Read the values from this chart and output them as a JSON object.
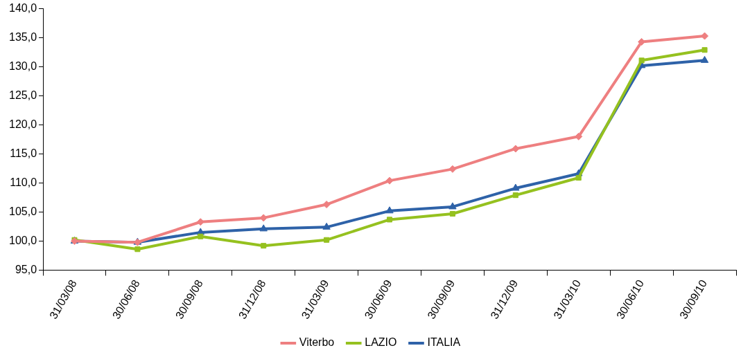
{
  "chart_data": {
    "type": "line",
    "categories": [
      "31/03/08",
      "30/06/08",
      "30/09/08",
      "31/12/08",
      "31/03/09",
      "30/06/09",
      "30/09/09",
      "31/12/09",
      "31/03/10",
      "30/06/10",
      "30/09/10"
    ],
    "series": [
      {
        "name": "Viterbo",
        "color": "#ee7f80",
        "marker": "diamond",
        "values": [
          100.0,
          99.8,
          103.3,
          104.0,
          106.3,
          110.4,
          112.4,
          115.9,
          118.0,
          134.3,
          135.3
        ]
      },
      {
        "name": "LAZIO",
        "color": "#95c11f",
        "marker": "square",
        "values": [
          100.2,
          98.6,
          100.8,
          99.2,
          100.2,
          103.7,
          104.7,
          107.9,
          110.9,
          131.1,
          132.9
        ]
      },
      {
        "name": "ITALIA",
        "color": "#2e62a8",
        "marker": "triangle",
        "values": [
          100.0,
          99.8,
          101.5,
          102.1,
          102.4,
          105.2,
          105.9,
          109.1,
          111.6,
          130.2,
          131.1
        ]
      }
    ],
    "ylim": [
      95,
      140
    ],
    "yticks": [
      {
        "value": 95,
        "label": "95,0"
      },
      {
        "value": 100,
        "label": "100,0"
      },
      {
        "value": 105,
        "label": "105,0"
      },
      {
        "value": 110,
        "label": "110,0"
      },
      {
        "value": 115,
        "label": "115,0"
      },
      {
        "value": 120,
        "label": "120,0"
      },
      {
        "value": 125,
        "label": "125,0"
      },
      {
        "value": 130,
        "label": "130,0"
      },
      {
        "value": 135,
        "label": "135,0"
      },
      {
        "value": 140,
        "label": "140,0"
      }
    ],
    "grid": false,
    "legend": "bottom",
    "line_style": "solid"
  }
}
